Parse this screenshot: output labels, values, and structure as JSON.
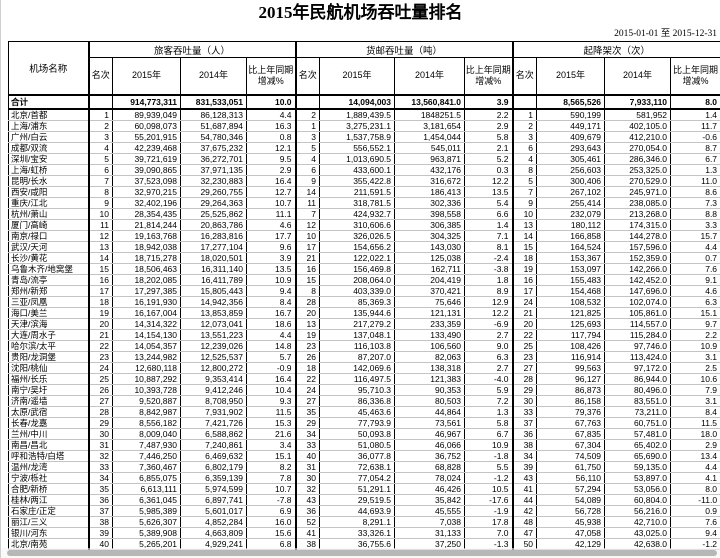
{
  "title": "2015年民航机场吞吐量排名",
  "date_range": "2015-01-01 至 2015-12-31",
  "table": {
    "name_header": "机场名称",
    "groups": [
      {
        "label": "旅客吞吐量（人）"
      },
      {
        "label": "货邮吞吐量（吨）"
      },
      {
        "label": "起降架次（次）"
      }
    ],
    "sub_headers": [
      "名次",
      "2015年",
      "2014年",
      "比上年同期增减%"
    ],
    "total_row": {
      "label": "合计",
      "cells": [
        "",
        "914,773,311",
        "831,533,051",
        "10.0",
        "",
        "14,094,003",
        "13,560,841.0",
        "3.9",
        "",
        "8,565,526",
        "7,933,110",
        "8.0"
      ]
    },
    "rows": [
      {
        "name": "北京/首都",
        "cells": [
          "1",
          "89,939,049",
          "86,128,313",
          "4.4",
          "2",
          "1,889,439.5",
          "1848251.5",
          "2.2",
          "1",
          "590,199",
          "581,952",
          "1.4"
        ]
      },
      {
        "name": "上海/浦东",
        "cells": [
          "2",
          "60,098,073",
          "51,687,894",
          "16.3",
          "1",
          "3,275,231.1",
          "3,181,654",
          "2.9",
          "2",
          "449,171",
          "402,105.0",
          "11.7"
        ]
      },
      {
        "name": "广州/白云",
        "cells": [
          "3",
          "55,201,915",
          "54,780,346",
          "0.8",
          "3",
          "1,537,758.9",
          "1,454,044",
          "5.8",
          "3",
          "409,679",
          "412,210.0",
          "-0.6"
        ]
      },
      {
        "name": "成都/双流",
        "cells": [
          "4",
          "42,239,468",
          "37,675,232",
          "12.1",
          "5",
          "556,552.1",
          "545,011",
          "2.1",
          "6",
          "293,643",
          "270,054.0",
          "8.7"
        ]
      },
      {
        "name": "深圳/宝安",
        "cells": [
          "5",
          "39,721,619",
          "36,272,701",
          "9.5",
          "4",
          "1,013,690.5",
          "963,871",
          "5.2",
          "4",
          "305,461",
          "286,346.0",
          "6.7"
        ]
      },
      {
        "name": "上海/虹桥",
        "cells": [
          "6",
          "39,090,865",
          "37,971,135",
          "2.9",
          "6",
          "433,600.1",
          "432,176",
          "0.3",
          "8",
          "256,603",
          "253,325.0",
          "1.3"
        ]
      },
      {
        "name": "昆明/长水",
        "cells": [
          "7",
          "37,523,098",
          "32,230,883",
          "16.4",
          "9",
          "355,422.8",
          "316,672",
          "12.2",
          "5",
          "300,406",
          "270,529.0",
          "11.0"
        ]
      },
      {
        "name": "西安/咸阳",
        "cells": [
          "8",
          "32,970,215",
          "29,260,755",
          "12.7",
          "14",
          "211,591.5",
          "186,413",
          "13.5",
          "7",
          "267,102",
          "245,971.0",
          "8.6"
        ]
      },
      {
        "name": "重庆/江北",
        "cells": [
          "9",
          "32,402,196",
          "29,264,363",
          "10.7",
          "11",
          "318,781.5",
          "302,336",
          "5.4",
          "9",
          "255,414",
          "238,085.0",
          "7.3"
        ]
      },
      {
        "name": "杭州/萧山",
        "cells": [
          "10",
          "28,354,435",
          "25,525,862",
          "11.1",
          "7",
          "424,932.7",
          "398,558",
          "6.6",
          "10",
          "232,079",
          "213,268.0",
          "8.8"
        ]
      },
      {
        "name": "厦门/高崎",
        "cells": [
          "11",
          "21,814,244",
          "20,863,786",
          "4.6",
          "12",
          "310,606.6",
          "306,385",
          "1.4",
          "13",
          "180,112",
          "174,315.0",
          "3.3"
        ]
      },
      {
        "name": "南京/禄口",
        "cells": [
          "12",
          "19,163,768",
          "16,283,816",
          "17.7",
          "10",
          "326,026.5",
          "304,325",
          "7.1",
          "14",
          "166,858",
          "144,278.0",
          "15.7"
        ]
      },
      {
        "name": "武汉/天河",
        "cells": [
          "13",
          "18,942,038",
          "17,277,104",
          "9.6",
          "17",
          "154,656.2",
          "143,030",
          "8.1",
          "15",
          "164,524",
          "157,596.0",
          "4.4"
        ]
      },
      {
        "name": "长沙/黄花",
        "cells": [
          "14",
          "18,715,278",
          "18,020,501",
          "3.9",
          "21",
          "122,022.1",
          "125,038",
          "-2.4",
          "18",
          "153,367",
          "152,359.0",
          "0.7"
        ]
      },
      {
        "name": "乌鲁木齐/地窝堡",
        "cells": [
          "15",
          "18,506,463",
          "16,311,140",
          "13.5",
          "16",
          "156,469.8",
          "162,711",
          "-3.8",
          "19",
          "153,097",
          "142,266.0",
          "7.6"
        ]
      },
      {
        "name": "青岛/流亭",
        "cells": [
          "16",
          "18,202,085",
          "16,411,789",
          "10.9",
          "15",
          "208,064.0",
          "204,419",
          "1.8",
          "16",
          "155,483",
          "142,452.0",
          "9.1"
        ]
      },
      {
        "name": "郑州/新郑",
        "cells": [
          "17",
          "17,297,385",
          "15,805,443",
          "9.4",
          "8",
          "403,339.0",
          "370,421",
          "8.9",
          "17",
          "154,468",
          "147,696.0",
          "4.6"
        ]
      },
      {
        "name": "三亚/凤凰",
        "cells": [
          "18",
          "16,191,930",
          "14,942,356",
          "8.4",
          "28",
          "85,369.3",
          "75,646",
          "12.9",
          "24",
          "108,532",
          "102,074.0",
          "6.3"
        ]
      },
      {
        "name": "海口/美兰",
        "cells": [
          "19",
          "16,167,004",
          "13,853,859",
          "16.7",
          "20",
          "135,944.6",
          "121,131",
          "12.2",
          "21",
          "121,825",
          "105,861.0",
          "15.1"
        ]
      },
      {
        "name": "天津/滨海",
        "cells": [
          "20",
          "14,314,322",
          "12,073,041",
          "18.6",
          "13",
          "217,279.2",
          "233,359",
          "-6.9",
          "20",
          "125,693",
          "114,557.0",
          "9.7"
        ]
      },
      {
        "name": "大连/周水子",
        "cells": [
          "21",
          "14,154,130",
          "13,551,223",
          "4.4",
          "19",
          "137,048.1",
          "133,490",
          "2.7",
          "22",
          "117,794",
          "115,284.0",
          "2.2"
        ]
      },
      {
        "name": "哈尔滨/太平",
        "cells": [
          "22",
          "14,054,357",
          "12,239,026",
          "14.8",
          "23",
          "116,103.8",
          "106,560",
          "9.0",
          "25",
          "108,426",
          "97,746.0",
          "10.9"
        ]
      },
      {
        "name": "贵阳/龙洞堡",
        "cells": [
          "23",
          "13,244,982",
          "12,525,537",
          "5.7",
          "26",
          "87,207.0",
          "82,063",
          "6.3",
          "23",
          "116,914",
          "113,424.0",
          "3.1"
        ]
      },
      {
        "name": "沈阳/桃仙",
        "cells": [
          "24",
          "12,680,118",
          "12,800,272",
          "-0.9",
          "18",
          "142,069.6",
          "138,318",
          "2.7",
          "27",
          "99,563",
          "97,172.0",
          "2.5"
        ]
      },
      {
        "name": "福州/长乐",
        "cells": [
          "25",
          "10,887,292",
          "9,353,414",
          "16.4",
          "22",
          "116,497.5",
          "121,383",
          "-4.0",
          "28",
          "96,127",
          "86,944.0",
          "10.6"
        ]
      },
      {
        "name": "南宁/吴圩",
        "cells": [
          "26",
          "10,393,728",
          "9,412,246",
          "10.4",
          "24",
          "95,710.3",
          "90,353",
          "5.9",
          "29",
          "86,873",
          "80,496.0",
          "7.9"
        ]
      },
      {
        "name": "济南/遥墙",
        "cells": [
          "27",
          "9,520,887",
          "8,708,950",
          "9.3",
          "27",
          "86,336.8",
          "80,503",
          "7.2",
          "30",
          "86,158",
          "83,551.0",
          "3.1"
        ]
      },
      {
        "name": "太原/武宿",
        "cells": [
          "28",
          "8,842,987",
          "7,931,902",
          "11.5",
          "35",
          "45,463.6",
          "44,864",
          "1.3",
          "33",
          "79,376",
          "73,211.0",
          "8.4"
        ]
      },
      {
        "name": "长春/龙嘉",
        "cells": [
          "29",
          "8,556,182",
          "7,421,726",
          "15.3",
          "29",
          "77,793.9",
          "73,561",
          "5.8",
          "37",
          "67,763",
          "60,751.0",
          "11.5"
        ]
      },
      {
        "name": "兰州/中川",
        "cells": [
          "30",
          "8,009,040",
          "6,588,862",
          "21.6",
          "34",
          "50,093.8",
          "46,967",
          "6.7",
          "36",
          "67,835",
          "57,481.0",
          "18.0"
        ]
      },
      {
        "name": "南昌/昌北",
        "cells": [
          "31",
          "7,487,930",
          "7,240,861",
          "3.4",
          "33",
          "51,080.5",
          "46,066",
          "10.9",
          "38",
          "67,304",
          "65,402.0",
          "2.9"
        ]
      },
      {
        "name": "呼和浩特/白塔",
        "cells": [
          "32",
          "7,446,250",
          "6,469,632",
          "15.1",
          "40",
          "36,077.8",
          "36,752",
          "-1.8",
          "34",
          "74,509",
          "65,690.0",
          "13.4"
        ]
      },
      {
        "name": "温州/龙湾",
        "cells": [
          "33",
          "7,360,467",
          "6,802,179",
          "8.2",
          "31",
          "72,638.1",
          "68,828",
          "5.5",
          "39",
          "61,750",
          "59,135.0",
          "4.4"
        ]
      },
      {
        "name": "宁波/栎社",
        "cells": [
          "34",
          "6,855,075",
          "6,359,139",
          "7.8",
          "30",
          "77,054.2",
          "78,024",
          "-1.2",
          "43",
          "56,110",
          "53,897.0",
          "4.1"
        ]
      },
      {
        "name": "合肥/新桥",
        "cells": [
          "35",
          "6,613,111",
          "5,974,599",
          "10.7",
          "32",
          "51,291.1",
          "46,426",
          "10.5",
          "41",
          "57,294",
          "53,056.0",
          "8.0"
        ]
      },
      {
        "name": "桂林/两江",
        "cells": [
          "36",
          "6,361,045",
          "6,897,741",
          "-7.8",
          "43",
          "29,519.5",
          "35,842",
          "-17.6",
          "44",
          "54,089",
          "60,804.0",
          "-11.0"
        ]
      },
      {
        "name": "石家庄/正定",
        "cells": [
          "37",
          "5,985,389",
          "5,601,017",
          "6.9",
          "36",
          "44,693.9",
          "45,555",
          "-1.9",
          "42",
          "56,728",
          "56,216.0",
          "0.9"
        ]
      },
      {
        "name": "丽江/三义",
        "cells": [
          "38",
          "5,626,307",
          "4,852,284",
          "16.0",
          "52",
          "8,291.1",
          "7,038",
          "17.8",
          "48",
          "45,938",
          "42,710.0",
          "7.6"
        ]
      },
      {
        "name": "银川/河东",
        "cells": [
          "39",
          "5,389,908",
          "4,663,809",
          "15.6",
          "41",
          "33,326.1",
          "31,133",
          "7.0",
          "47",
          "47,058",
          "43,025.0",
          "9.4"
        ]
      },
      {
        "name": "北京/南苑",
        "cells": [
          "40",
          "5,265,201",
          "4,929,241",
          "6.8",
          "38",
          "36,755.6",
          "37,250",
          "-1.3",
          "50",
          "42,129",
          "42,638.0",
          "-1.2"
        ]
      }
    ]
  },
  "colors": {
    "border_dark": "#000000",
    "grid_light": "#c4c4c4",
    "scrollbar_thumb": "#b7b7b7"
  }
}
